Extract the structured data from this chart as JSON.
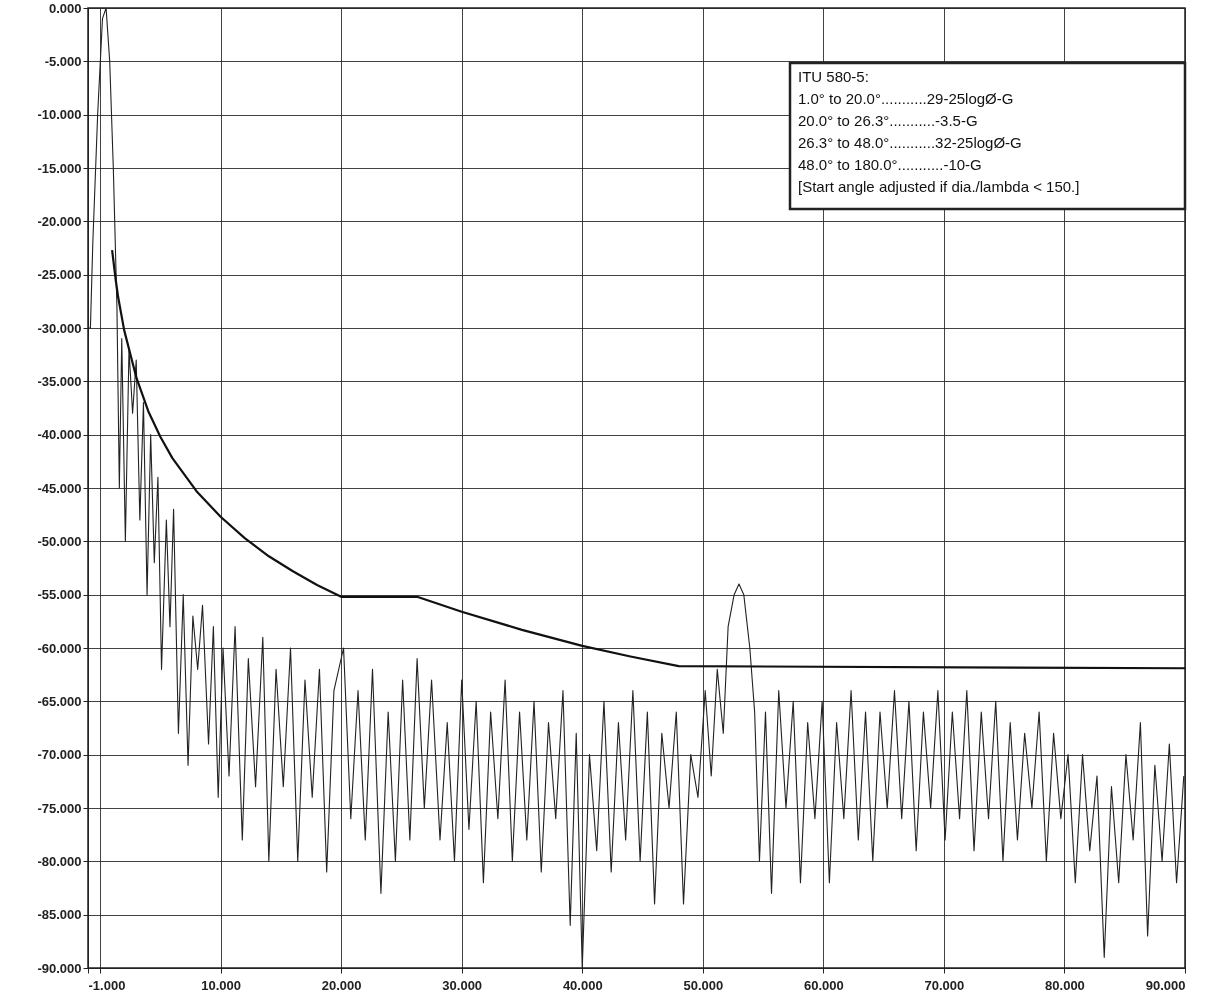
{
  "chart_data": {
    "type": "line",
    "xlim": [
      -1,
      90
    ],
    "ylim": [
      -90,
      0
    ],
    "xticks": [
      {
        "value": -1,
        "label": "-1.000"
      },
      {
        "value": 0,
        "label": null
      },
      {
        "value": 10,
        "label": "10.000"
      },
      {
        "value": 20,
        "label": "20.000"
      },
      {
        "value": 30,
        "label": "30.000"
      },
      {
        "value": 40,
        "label": "40.000"
      },
      {
        "value": 50,
        "label": "50.000"
      },
      {
        "value": 60,
        "label": "60.000"
      },
      {
        "value": 70,
        "label": "70.000"
      },
      {
        "value": 80,
        "label": "80.000"
      },
      {
        "value": 90,
        "label": "90.000"
      }
    ],
    "yticks": [
      {
        "value": 0,
        "label": "0.000"
      },
      {
        "value": -5,
        "label": "-5.000"
      },
      {
        "value": -10,
        "label": "-10.000"
      },
      {
        "value": -15,
        "label": "-15.000"
      },
      {
        "value": -20,
        "label": "-20.000"
      },
      {
        "value": -25,
        "label": "-25.000"
      },
      {
        "value": -30,
        "label": "-30.000"
      },
      {
        "value": -35,
        "label": "-35.000"
      },
      {
        "value": -40,
        "label": "-40.000"
      },
      {
        "value": -45,
        "label": "-45.000"
      },
      {
        "value": -50,
        "label": "-50.000"
      },
      {
        "value": -55,
        "label": "-55.000"
      },
      {
        "value": -60,
        "label": "-60.000"
      },
      {
        "value": -65,
        "label": "-65.000"
      },
      {
        "value": -70,
        "label": "-70.000"
      },
      {
        "value": -75,
        "label": "-75.000"
      },
      {
        "value": -80,
        "label": "-80.000"
      },
      {
        "value": -85,
        "label": "-85.000"
      },
      {
        "value": -90,
        "label": "-90.000"
      }
    ],
    "grid": true,
    "annotations": [
      "ITU 580-5:",
      "1.0° to 20.0°...........29-25logØ-G",
      "20.0° to 26.3°...........-3.5-G",
      "26.3° to 48.0°...........32-25logØ-G",
      "48.0° to 180.0°...........-10-G",
      "[Start angle adjusted if dia./lambda < 150.]"
    ],
    "series": [
      {
        "color": "#222222",
        "x": [
          -1,
          -0.8,
          -0.6,
          -0.2,
          0.2,
          0.5,
          0.8,
          1.1,
          1.4,
          1.6,
          1.8,
          2.1,
          2.4,
          2.7,
          3.0,
          3.3,
          3.6,
          3.9,
          4.2,
          4.5,
          4.8,
          5.1,
          5.5,
          5.8,
          6.1,
          6.5,
          6.9,
          7.3,
          7.7,
          8.1,
          8.5,
          9.0,
          9.4,
          9.8,
          10.2,
          10.7,
          11.2,
          11.8,
          12.3,
          12.9,
          13.5,
          14.0,
          14.6,
          15.2,
          15.8,
          16.4,
          17.0,
          17.6,
          18.2,
          18.8,
          19.4,
          20.2,
          20.8,
          21.4,
          22.0,
          22.6,
          23.3,
          23.9,
          24.5,
          25.1,
          25.7,
          26.3,
          26.9,
          27.5,
          28.2,
          28.8,
          29.4,
          30.0,
          30.6,
          31.2,
          31.8,
          32.4,
          33.0,
          33.6,
          34.2,
          34.8,
          35.4,
          36.0,
          36.6,
          37.2,
          37.8,
          38.4,
          39.0,
          39.5,
          40.0,
          40.6,
          41.2,
          41.8,
          42.4,
          43.0,
          43.6,
          44.2,
          44.8,
          45.4,
          46.0,
          46.6,
          47.2,
          47.8,
          48.4,
          49.0,
          49.6,
          50.2,
          50.7,
          51.2,
          51.7,
          52.1,
          52.6,
          53.0,
          53.4,
          53.9,
          54.3,
          54.7,
          55.2,
          55.7,
          56.3,
          56.9,
          57.5,
          58.1,
          58.7,
          59.3,
          59.9,
          60.5,
          61.1,
          61.7,
          62.3,
          62.9,
          63.5,
          64.1,
          64.7,
          65.3,
          65.9,
          66.5,
          67.1,
          67.7,
          68.3,
          68.9,
          69.5,
          70.1,
          70.7,
          71.3,
          71.9,
          72.5,
          73.1,
          73.7,
          74.3,
          74.9,
          75.5,
          76.1,
          76.7,
          77.3,
          77.9,
          78.5,
          79.1,
          79.7,
          80.3,
          80.9,
          81.5,
          82.1,
          82.7,
          83.3,
          83.9,
          84.5,
          85.1,
          85.7,
          86.3,
          86.9,
          87.5,
          88.1,
          88.7,
          89.3,
          89.9
        ],
        "values": [
          -30,
          -30,
          -22,
          -10,
          -1,
          0,
          -5,
          -15,
          -28,
          -45,
          -31,
          -50,
          -32,
          -38,
          -33,
          -48,
          -37,
          -55,
          -40,
          -52,
          -44,
          -62,
          -48,
          -58,
          -47,
          -68,
          -55,
          -71,
          -57,
          -62,
          -56,
          -69,
          -58,
          -74,
          -60,
          -72,
          -58,
          -78,
          -61,
          -73,
          -59,
          -80,
          -62,
          -73,
          -60,
          -80,
          -63,
          -74,
          -62,
          -81,
          -64,
          -60,
          -76,
          -64,
          -78,
          -62,
          -83,
          -66,
          -80,
          -63,
          -78,
          -61,
          -75,
          -63,
          -78,
          -67,
          -80,
          -63,
          -77,
          -65,
          -82,
          -66,
          -76,
          -63,
          -80,
          -66,
          -78,
          -65,
          -81,
          -67,
          -76,
          -64,
          -86,
          -68,
          -90,
          -70,
          -79,
          -65,
          -81,
          -67,
          -78,
          -64,
          -80,
          -66,
          -84,
          -68,
          -75,
          -66,
          -84,
          -70,
          -74,
          -64,
          -72,
          -62,
          -68,
          -58,
          -55,
          -54,
          -55,
          -60,
          -66,
          -80,
          -66,
          -83,
          -64,
          -75,
          -65,
          -82,
          -67,
          -76,
          -65,
          -82,
          -67,
          -76,
          -64,
          -78,
          -66,
          -80,
          -66,
          -75,
          -64,
          -76,
          -65,
          -79,
          -66,
          -75,
          -64,
          -78,
          -66,
          -76,
          -64,
          -79,
          -66,
          -76,
          -65,
          -80,
          -67,
          -78,
          -68,
          -75,
          -66,
          -80,
          -68,
          -76,
          -70,
          -82,
          -70,
          -79,
          -72,
          -89,
          -73,
          -82,
          -70,
          -78,
          -67,
          -87,
          -71,
          -80,
          -69,
          -82,
          -72
        ]
      },
      {
        "color": "#111111",
        "x": [
          1,
          1.3,
          1.5,
          2,
          3,
          4,
          5,
          6,
          8,
          10,
          12,
          14,
          16,
          18,
          20,
          26.3,
          30,
          35,
          40,
          44,
          48,
          90
        ],
        "values": [
          -22.7,
          -25.5,
          -27.1,
          -30.2,
          -34.6,
          -37.8,
          -40.2,
          -42.2,
          -45.3,
          -47.7,
          -49.7,
          -51.4,
          -52.8,
          -54.1,
          -55.2,
          -55.2,
          -56.6,
          -58.3,
          -59.8,
          -60.8,
          -61.7,
          -61.9
        ]
      }
    ]
  }
}
